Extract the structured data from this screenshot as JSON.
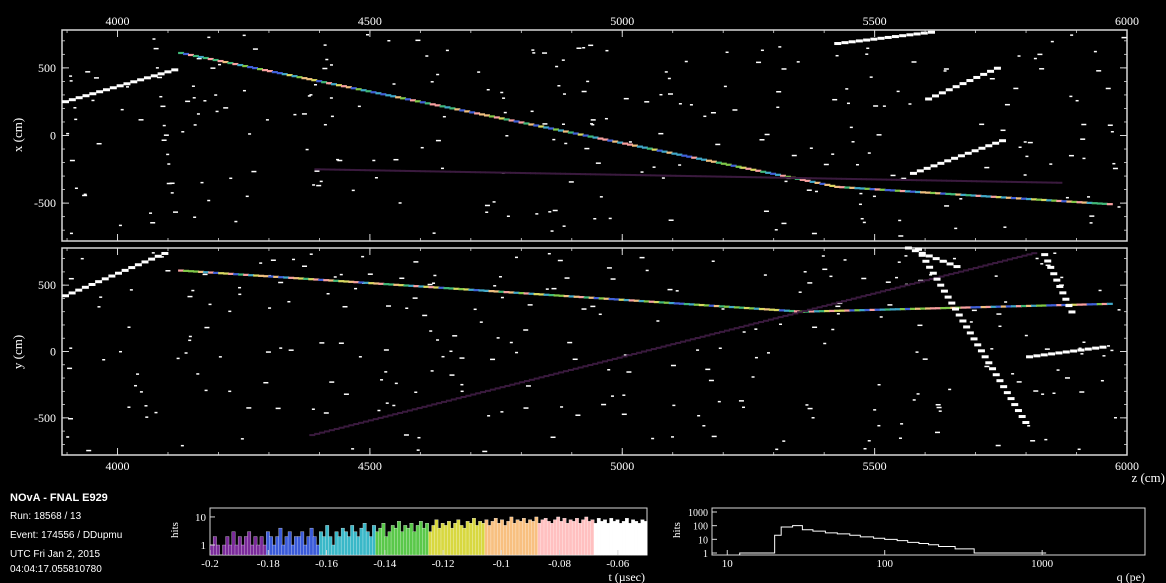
{
  "info": {
    "title": "NOvA - FNAL E929",
    "run": "Run:   18568 / 13",
    "event": "Event: 174556 / DDupmu",
    "date": "UTC Fri Jan 2, 2015",
    "time": "04:04:17.055810780"
  },
  "colors": {
    "background": "#000000",
    "frame": "#d8d8d8",
    "hit": "#ffffff",
    "track_dim": "#3a1a3e"
  },
  "chart_data": [
    {
      "type": "scatter",
      "name": "xz-view",
      "xlabel": "",
      "ylabel": "x (cm)",
      "xlim": [
        3890,
        6000
      ],
      "ylim": [
        -780,
        780
      ],
      "x_ticks": [
        4000,
        4500,
        5000,
        5500,
        6000
      ],
      "y_ticks": [
        500,
        0,
        -500
      ],
      "tracks": [
        {
          "points": [
            [
              4120,
              610
            ],
            [
              5420,
              -380
            ],
            [
              5970,
              -510
            ]
          ],
          "style": "rainbow"
        },
        {
          "points": [
            [
              4390,
              -250
            ],
            [
              5870,
              -350
            ]
          ],
          "style": "dim"
        },
        {
          "points": [
            [
              3890,
              250
            ],
            [
              4120,
              500
            ]
          ],
          "style": "white"
        },
        {
          "points": [
            [
              5420,
              680
            ],
            [
              5620,
              770
            ]
          ],
          "style": "white"
        },
        {
          "points": [
            [
              5570,
              -280
            ],
            [
              5760,
              -20
            ]
          ],
          "style": "white"
        },
        {
          "points": [
            [
              5600,
              270
            ],
            [
              5750,
              520
            ]
          ],
          "style": "white"
        }
      ]
    },
    {
      "type": "scatter",
      "name": "yz-view",
      "xlabel": "z (cm)",
      "ylabel": "y (cm)",
      "xlim": [
        3890,
        6000
      ],
      "ylim": [
        -780,
        780
      ],
      "x_ticks": [
        4000,
        4500,
        5000,
        5500,
        6000
      ],
      "y_ticks": [
        500,
        0,
        -500
      ],
      "tracks": [
        {
          "points": [
            [
              4120,
              610
            ],
            [
              5350,
              300
            ],
            [
              5970,
              360
            ]
          ],
          "style": "rainbow"
        },
        {
          "points": [
            [
              4380,
              -630
            ],
            [
              5820,
              750
            ]
          ],
          "style": "dim"
        },
        {
          "points": [
            [
              3890,
              420
            ],
            [
              4100,
              760
            ]
          ],
          "style": "white"
        },
        {
          "points": [
            [
              5560,
              780
            ],
            [
              5670,
              620
            ]
          ],
          "style": "white"
        },
        {
          "points": [
            [
              5580,
              770
            ],
            [
              5800,
              -580
            ]
          ],
          "style": "white"
        },
        {
          "points": [
            [
              5830,
              730
            ],
            [
              5890,
              250
            ]
          ],
          "style": "white"
        },
        {
          "points": [
            [
              5800,
              -40
            ],
            [
              5960,
              40
            ]
          ],
          "style": "white"
        }
      ]
    },
    {
      "type": "bar",
      "name": "time-histogram",
      "xlabel": "t (µsec)",
      "ylabel": "hits",
      "xlim": [
        -0.2,
        -0.05
      ],
      "x_ticks": [
        -0.2,
        -0.18,
        -0.16,
        -0.14,
        -0.12,
        -0.1,
        -0.08,
        -0.06
      ],
      "y_ticks": [
        10,
        1
      ],
      "log_y": true,
      "color_gradient": [
        "#7a2a9a",
        "#3a5ad8",
        "#3ab8c8",
        "#5ac84a",
        "#d8d840",
        "#f8c080",
        "#ffc0c0",
        "#ffffff"
      ],
      "values": [
        1,
        2,
        1,
        0,
        1,
        2,
        1,
        3,
        1,
        2,
        1,
        2,
        3,
        1,
        2,
        1,
        2,
        1,
        3,
        2,
        1,
        2,
        4,
        1,
        2,
        3,
        1,
        2,
        2,
        3,
        1,
        2,
        4,
        2,
        1,
        3,
        2,
        5,
        2,
        1,
        3,
        2,
        4,
        3,
        2,
        5,
        3,
        2,
        4,
        6,
        3,
        2,
        5,
        3,
        4,
        6,
        2,
        3,
        5,
        4,
        7,
        3,
        5,
        4,
        6,
        3,
        5,
        7,
        4,
        6,
        3,
        5,
        8,
        4,
        6,
        5,
        7,
        4,
        6,
        8,
        5,
        4,
        7,
        6,
        9,
        5,
        7,
        6,
        8,
        5,
        7,
        9,
        6,
        8,
        5,
        7,
        10,
        6,
        8,
        7,
        9,
        6,
        8,
        7,
        10,
        6,
        8,
        9,
        7,
        6,
        8,
        10,
        7,
        9,
        6,
        8,
        7,
        9,
        6,
        8,
        10,
        7,
        8,
        6,
        9,
        7,
        8,
        6,
        9,
        7,
        8,
        6,
        7,
        9,
        6,
        8,
        7,
        6,
        8,
        7
      ]
    },
    {
      "type": "bar",
      "name": "charge-histogram",
      "xlabel": "q (pe)",
      "ylabel": "hits",
      "xlim": [
        8,
        4500
      ],
      "x_ticks": [
        10,
        100,
        1000
      ],
      "y_ticks": [
        1000,
        100,
        10,
        1
      ],
      "log_x": true,
      "log_y": true,
      "bins": [
        [
          12,
          1
        ],
        [
          18,
          1
        ],
        [
          20,
          20
        ],
        [
          22,
          80
        ],
        [
          26,
          100
        ],
        [
          30,
          50
        ],
        [
          35,
          40
        ],
        [
          42,
          30
        ],
        [
          50,
          25
        ],
        [
          60,
          20
        ],
        [
          70,
          15
        ],
        [
          85,
          12
        ],
        [
          100,
          10
        ],
        [
          120,
          8
        ],
        [
          140,
          6
        ],
        [
          165,
          5
        ],
        [
          190,
          4
        ],
        [
          220,
          3
        ],
        [
          250,
          3
        ],
        [
          280,
          2
        ],
        [
          320,
          2
        ],
        [
          370,
          1
        ],
        [
          430,
          1
        ],
        [
          500,
          1
        ],
        [
          600,
          1
        ],
        [
          700,
          1
        ],
        [
          850,
          1
        ],
        [
          1000,
          1
        ]
      ]
    }
  ]
}
